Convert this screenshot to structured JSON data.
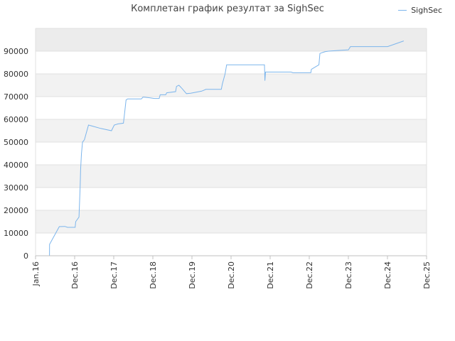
{
  "chart_data": {
    "type": "line",
    "title": "Комплетан график резултат за SighSec",
    "xlabel": "",
    "ylabel": "",
    "ylim": [
      0,
      100000
    ],
    "xlim": [
      "2016-01-01",
      "2025-12-31"
    ],
    "grid": true,
    "legend_position": "top-right",
    "y_ticks": [
      "0",
      "10000",
      "20000",
      "30000",
      "40000",
      "50000",
      "60000",
      "70000",
      "80000",
      "90000"
    ],
    "x_ticks": [
      "Jan.16",
      "Dec.16",
      "Dec.17",
      "Dec.18",
      "Dec.19",
      "Dec.20",
      "Dec.21",
      "Dec.22",
      "Dec.23",
      "Dec.24",
      "Dec.25"
    ],
    "series": [
      {
        "name": "SighSec",
        "color": "#7cb5ec",
        "points": [
          [
            "2016-05-10",
            0
          ],
          [
            "2016-05-11",
            5000
          ],
          [
            "2016-08-10",
            12800
          ],
          [
            "2016-10-01",
            12900
          ],
          [
            "2016-10-25",
            12500
          ],
          [
            "2017-01-05",
            12500
          ],
          [
            "2017-01-10",
            15000
          ],
          [
            "2017-02-10",
            17000
          ],
          [
            "2017-02-20",
            30000
          ],
          [
            "2017-02-25",
            38000
          ],
          [
            "2017-03-05",
            45000
          ],
          [
            "2017-03-15",
            50000
          ],
          [
            "2017-04-01",
            51000
          ],
          [
            "2017-05-10",
            57500
          ],
          [
            "2017-09-01",
            56000
          ],
          [
            "2017-12-10",
            55000
          ],
          [
            "2018-01-05",
            57500
          ],
          [
            "2018-02-10",
            58000
          ],
          [
            "2018-04-01",
            58300
          ],
          [
            "2018-04-10",
            62000
          ],
          [
            "2018-04-25",
            68500
          ],
          [
            "2018-05-10",
            69000
          ],
          [
            "2018-09-15",
            69000
          ],
          [
            "2018-10-01",
            69800
          ],
          [
            "2018-12-01",
            69500
          ],
          [
            "2019-01-15",
            69200
          ],
          [
            "2019-03-01",
            69200
          ],
          [
            "2019-03-10",
            70800
          ],
          [
            "2019-05-01",
            70800
          ],
          [
            "2019-05-10",
            71700
          ],
          [
            "2019-08-01",
            72200
          ],
          [
            "2019-08-10",
            74500
          ],
          [
            "2019-09-01",
            75000
          ],
          [
            "2019-10-01",
            73500
          ],
          [
            "2019-11-10",
            71300
          ],
          [
            "2019-12-20",
            71500
          ],
          [
            "2020-04-01",
            72400
          ],
          [
            "2020-05-10",
            73200
          ],
          [
            "2020-10-01",
            73200
          ],
          [
            "2020-10-10",
            75500
          ],
          [
            "2020-11-05",
            80000
          ],
          [
            "2020-11-20",
            84000
          ],
          [
            "2021-11-08",
            84000
          ],
          [
            "2021-11-12",
            77000
          ],
          [
            "2021-11-18",
            80800
          ],
          [
            "2022-07-15",
            80800
          ],
          [
            "2022-08-01",
            80500
          ],
          [
            "2023-01-15",
            80500
          ],
          [
            "2023-01-20",
            82000
          ],
          [
            "2023-04-01",
            84000
          ],
          [
            "2023-04-10",
            89000
          ],
          [
            "2023-05-10",
            89500
          ],
          [
            "2023-06-01",
            89800
          ],
          [
            "2023-07-01",
            90000
          ],
          [
            "2023-10-01",
            90300
          ],
          [
            "2024-01-01",
            90600
          ],
          [
            "2024-01-20",
            92000
          ],
          [
            "2025-01-01",
            92000
          ],
          [
            "2025-06-01",
            94500
          ]
        ]
      }
    ]
  }
}
